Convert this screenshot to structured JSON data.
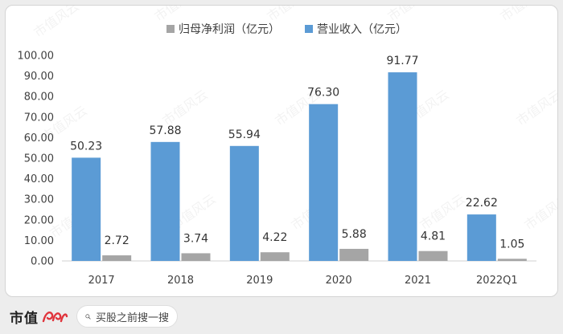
{
  "chart_data": {
    "type": "bar",
    "categories": [
      "2017",
      "2018",
      "2019",
      "2020",
      "2021",
      "2022Q1"
    ],
    "series": [
      {
        "name": "营业收入（亿元）",
        "color": "#5b9bd5",
        "values": [
          50.23,
          57.88,
          55.94,
          76.3,
          91.77,
          22.62
        ]
      },
      {
        "name": "归母净利润（亿元）",
        "color": "#a5a5a5",
        "values": [
          2.72,
          3.74,
          4.22,
          5.88,
          4.81,
          1.05
        ]
      }
    ],
    "legend_order": [
      "归母净利润（亿元）",
      "营业收入（亿元）"
    ],
    "ylim": [
      0,
      100
    ],
    "yticks": [
      "0.00",
      "10.00",
      "20.00",
      "30.00",
      "40.00",
      "50.00",
      "60.00",
      "70.00",
      "80.00",
      "90.00",
      "100.00"
    ],
    "grid": false,
    "legend_position": "top"
  },
  "watermark": {
    "text": "市值风云"
  },
  "footer": {
    "brand": "市值",
    "search_placeholder": "买股之前搜一搜",
    "logo_color": "#e0343c"
  }
}
